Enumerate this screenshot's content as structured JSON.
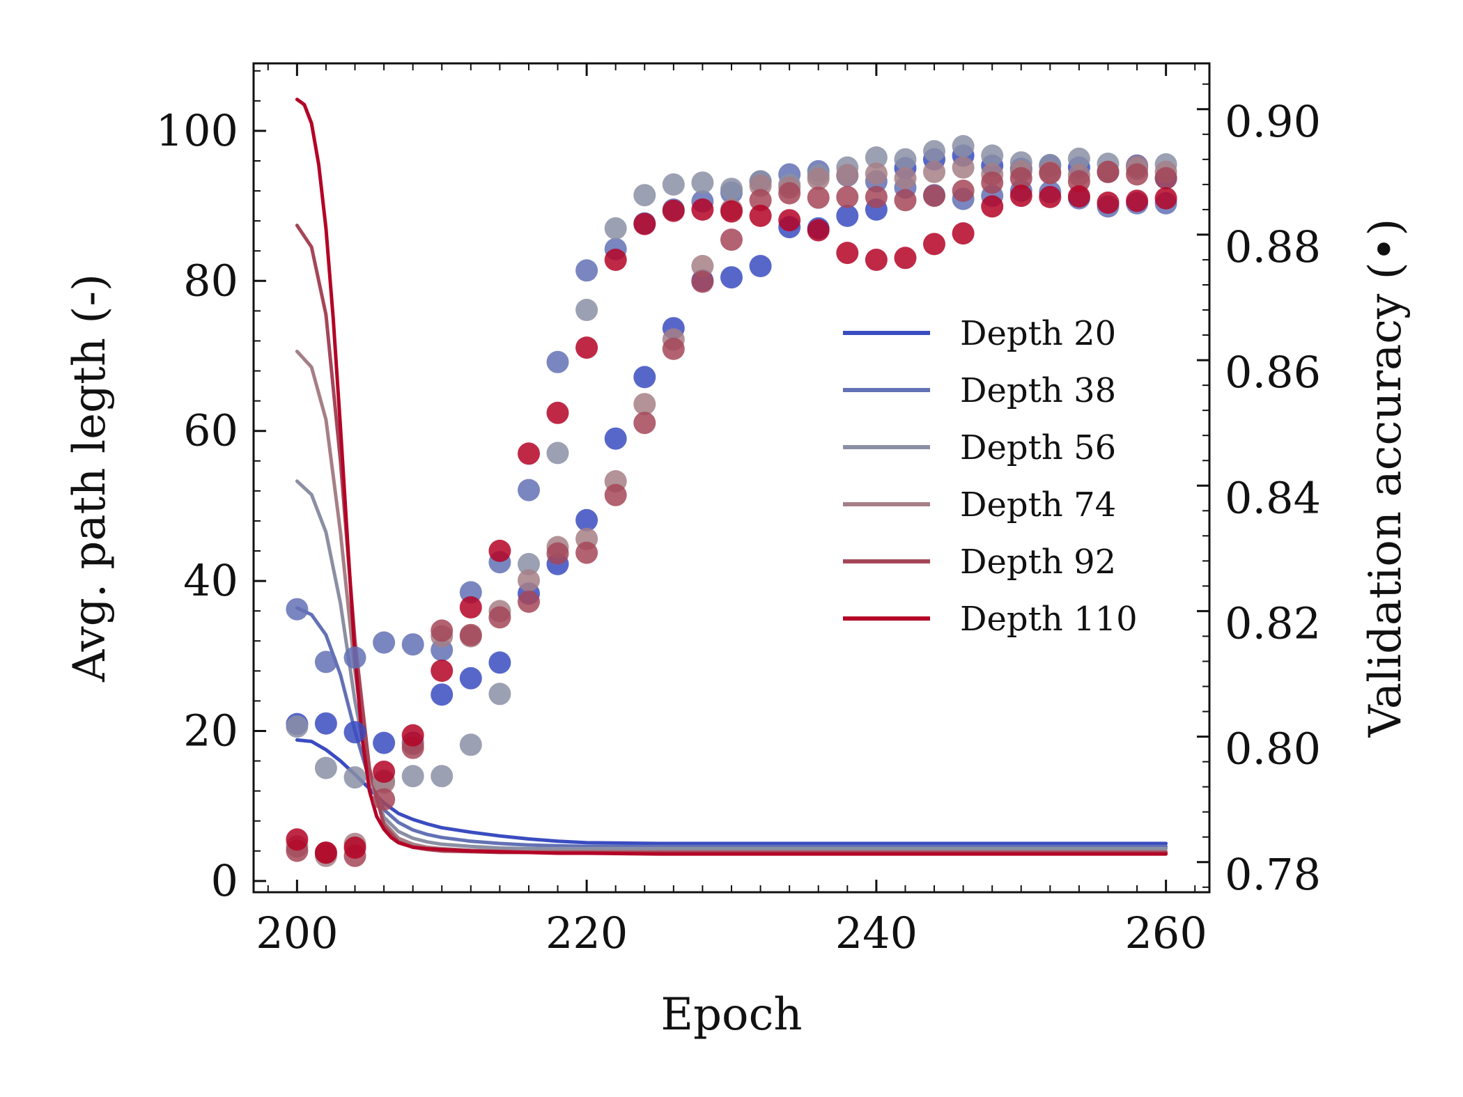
{
  "chart_data": {
    "type": "line",
    "xlabel": "Epoch",
    "ylabel_left": "Avg. path legth (-)",
    "ylabel_right": "Validation accuracy (•)",
    "xlim": [
      197,
      263
    ],
    "ylim_left": [
      -1.5,
      109
    ],
    "ylim_right": [
      0.7772,
      0.9093
    ],
    "x_ticks": [
      200,
      220,
      240,
      260
    ],
    "y_left_ticks": [
      0,
      20,
      40,
      60,
      80,
      100
    ],
    "y_right_ticks": [
      0.78,
      0.8,
      0.82,
      0.84,
      0.86,
      0.88,
      0.9
    ],
    "y_right_tick_labels": [
      "0.78",
      "0.80",
      "0.82",
      "0.84",
      "0.86",
      "0.88",
      "0.90"
    ],
    "legend_position": "center-right",
    "series": [
      {
        "name": "Depth 20",
        "color": "#3a4cc0",
        "line": {
          "x": [
            200,
            201,
            202,
            203,
            204,
            205,
            206,
            207,
            208,
            209,
            210,
            212,
            214,
            216,
            218,
            220,
            225,
            230,
            240,
            250,
            260
          ],
          "y": [
            18.8,
            18.6,
            17.5,
            16.0,
            14.2,
            12.3,
            10.4,
            9.0,
            8.2,
            7.6,
            7.1,
            6.5,
            6.0,
            5.6,
            5.3,
            5.1,
            5.0,
            5.0,
            5.0,
            5.0,
            5.0
          ]
        },
        "points": {
          "x": [
            200,
            202,
            204,
            206,
            208,
            210,
            212,
            214,
            216,
            218,
            220,
            222,
            224,
            226,
            228,
            230,
            232,
            234,
            236,
            238,
            240,
            242,
            244,
            246,
            248,
            250,
            252,
            254,
            256,
            258,
            260
          ],
          "y": [
            0.804,
            0.8041,
            0.8027,
            0.801,
            0.801,
            0.8087,
            0.8113,
            0.8138,
            0.8248,
            0.8295,
            0.8365,
            0.8495,
            0.8593,
            0.8671,
            0.8747,
            0.8752,
            0.877,
            0.8832,
            0.883,
            0.885,
            0.886,
            0.8926,
            0.894,
            0.8946,
            0.893,
            0.8925,
            0.893,
            0.8927,
            0.892,
            0.893,
            0.891
          ]
        }
      },
      {
        "name": "Depth 38",
        "color": "#6371b5",
        "line": {
          "x": [
            200,
            201,
            202,
            203,
            204,
            205,
            206,
            207,
            208,
            209,
            210,
            212,
            214,
            216,
            218,
            220,
            225,
            230,
            240,
            250,
            260
          ],
          "y": [
            36.4,
            35.5,
            32.8,
            27.5,
            20.0,
            13.5,
            9.5,
            7.8,
            6.8,
            6.2,
            5.8,
            5.3,
            5.0,
            4.8,
            4.7,
            4.6,
            4.6,
            4.6,
            4.6,
            4.6,
            4.6
          ]
        },
        "points": {
          "x": [
            200,
            202,
            204,
            206,
            208,
            210,
            212,
            214,
            216,
            218,
            220,
            222,
            224,
            226,
            228,
            230,
            232,
            234,
            236,
            238,
            240,
            242,
            244,
            246,
            248,
            250,
            252,
            254,
            256,
            258,
            260
          ],
          "y": [
            0.8223,
            0.8139,
            0.8146,
            0.817,
            0.8167,
            0.8158,
            0.825,
            0.8298,
            0.8413,
            0.8617,
            0.8763,
            0.8797,
            0.8838,
            0.886,
            0.8873,
            0.8887,
            0.8905,
            0.8916,
            0.8921,
            0.8914,
            0.8905,
            0.8895,
            0.8883,
            0.8877,
            0.8882,
            0.889,
            0.8888,
            0.8878,
            0.8865,
            0.887,
            0.887
          ]
        }
      },
      {
        "name": "Depth 56",
        "color": "#8a8fa4",
        "line": {
          "x": [
            200,
            201,
            202,
            203,
            204,
            205,
            206,
            207,
            208,
            209,
            210,
            212,
            214,
            216,
            218,
            220,
            225,
            230,
            240,
            250,
            260
          ],
          "y": [
            53.3,
            51.5,
            46.5,
            37.0,
            24.0,
            14.0,
            8.5,
            6.6,
            5.7,
            5.2,
            4.9,
            4.6,
            4.4,
            4.3,
            4.3,
            4.3,
            4.3,
            4.3,
            4.3,
            4.3,
            4.3
          ]
        },
        "points": {
          "x": [
            200,
            202,
            204,
            206,
            208,
            210,
            212,
            214,
            216,
            218,
            220,
            222,
            224,
            226,
            228,
            230,
            232,
            234,
            236,
            238,
            240,
            242,
            244,
            246,
            248,
            250,
            252,
            254,
            256,
            258,
            260
          ],
          "y": [
            0.8036,
            0.797,
            0.7955,
            0.795,
            0.7957,
            0.7957,
            0.8007,
            0.8088,
            0.8295,
            0.8472,
            0.87,
            0.883,
            0.8883,
            0.89,
            0.8903,
            0.8893,
            0.8905,
            0.89,
            0.8915,
            0.8927,
            0.8943,
            0.894,
            0.8953,
            0.8961,
            0.8946,
            0.8935,
            0.8931,
            0.8941,
            0.8933,
            0.8925,
            0.8932
          ]
        }
      },
      {
        "name": "Depth 74",
        "color": "#a67f86",
        "line": {
          "x": [
            200,
            201,
            202,
            203,
            204,
            205,
            206,
            207,
            208,
            209,
            210,
            212,
            214,
            216,
            218,
            220,
            225,
            230,
            240,
            250,
            260
          ],
          "y": [
            70.6,
            68.5,
            61.5,
            46.5,
            28.0,
            14.0,
            7.8,
            5.7,
            4.9,
            4.5,
            4.3,
            4.1,
            4.0,
            3.9,
            3.9,
            3.9,
            3.9,
            3.9,
            3.9,
            3.9,
            3.9
          ]
        },
        "points": {
          "x": [
            200,
            202,
            204,
            206,
            208,
            210,
            212,
            214,
            216,
            218,
            220,
            222,
            224,
            226,
            228,
            230,
            232,
            234,
            236,
            238,
            240,
            242,
            244,
            246,
            248,
            250,
            252,
            254,
            256,
            258,
            260
          ],
          "y": [
            0.7845,
            0.783,
            0.7849,
            0.7947,
            0.8008,
            0.818,
            0.818,
            0.822,
            0.8269,
            0.8322,
            0.8335,
            0.8427,
            0.855,
            0.8653,
            0.877,
            0.886,
            0.8898,
            0.8895,
            0.8909,
            0.8915,
            0.8917,
            0.891,
            0.892,
            0.8927,
            0.8916,
            0.8921,
            0.892,
            0.8915,
            0.892,
            0.8929,
            0.892
          ]
        }
      },
      {
        "name": "Depth 92",
        "color": "#a54658",
        "line": {
          "x": [
            200,
            201,
            202,
            203,
            204,
            205,
            206,
            207,
            208,
            209,
            210,
            212,
            214,
            216,
            218,
            220,
            225,
            230,
            240,
            250,
            260
          ],
          "y": [
            87.4,
            84.5,
            75.5,
            56.0,
            32.0,
            15.0,
            7.4,
            5.2,
            4.5,
            4.2,
            4.0,
            3.9,
            3.8,
            3.8,
            3.8,
            3.8,
            3.8,
            3.8,
            3.8,
            3.8,
            3.8
          ]
        },
        "points": {
          "x": [
            200,
            202,
            204,
            206,
            208,
            210,
            212,
            214,
            216,
            218,
            220,
            222,
            224,
            226,
            228,
            230,
            232,
            234,
            236,
            238,
            240,
            242,
            244,
            246,
            248,
            250,
            252,
            254,
            256,
            258,
            260
          ],
          "y": [
            0.7838,
            0.7835,
            0.783,
            0.792,
            0.8002,
            0.8189,
            0.8182,
            0.821,
            0.8235,
            0.8312,
            0.8313,
            0.8405,
            0.852,
            0.8638,
            0.8745,
            0.8812,
            0.8875,
            0.8886,
            0.8879,
            0.888,
            0.888,
            0.8875,
            0.8882,
            0.889,
            0.8903,
            0.891,
            0.8918,
            0.8905,
            0.892,
            0.8916,
            0.891
          ]
        }
      },
      {
        "name": "Depth 110",
        "color": "#b40426",
        "line": {
          "x": [
            200,
            200.5,
            201,
            201.5,
            202,
            202.5,
            203,
            203.5,
            204,
            204.5,
            205,
            205.5,
            206,
            206.5,
            207,
            208,
            209,
            210,
            212,
            214,
            216,
            218,
            220,
            225,
            230,
            240,
            250,
            260
          ],
          "y": [
            104.2,
            103.5,
            101.0,
            95.5,
            87.0,
            75.0,
            60.5,
            45.0,
            30.0,
            19.0,
            12.0,
            8.6,
            6.9,
            5.8,
            5.1,
            4.5,
            4.3,
            4.2,
            4.0,
            3.9,
            3.8,
            3.7,
            3.7,
            3.6,
            3.6,
            3.6,
            3.6,
            3.6
          ]
        },
        "points": {
          "x": [
            200,
            202,
            204,
            206,
            208,
            210,
            212,
            214,
            216,
            218,
            220,
            222,
            224,
            226,
            228,
            230,
            232,
            234,
            236,
            238,
            240,
            242,
            244,
            246,
            248,
            250,
            252,
            254,
            256,
            258,
            260
          ],
          "y": [
            0.7856,
            0.7835,
            0.7843,
            0.7964,
            0.8022,
            0.8125,
            0.8226,
            0.8316,
            0.8471,
            0.8536,
            0.864,
            0.878,
            0.8837,
            0.8858,
            0.886,
            0.8857,
            0.885,
            0.8843,
            0.8827,
            0.8791,
            0.878,
            0.8783,
            0.8805,
            0.8822,
            0.8865,
            0.8882,
            0.888,
            0.8881,
            0.8871,
            0.8874,
            0.8878
          ]
        }
      }
    ]
  }
}
